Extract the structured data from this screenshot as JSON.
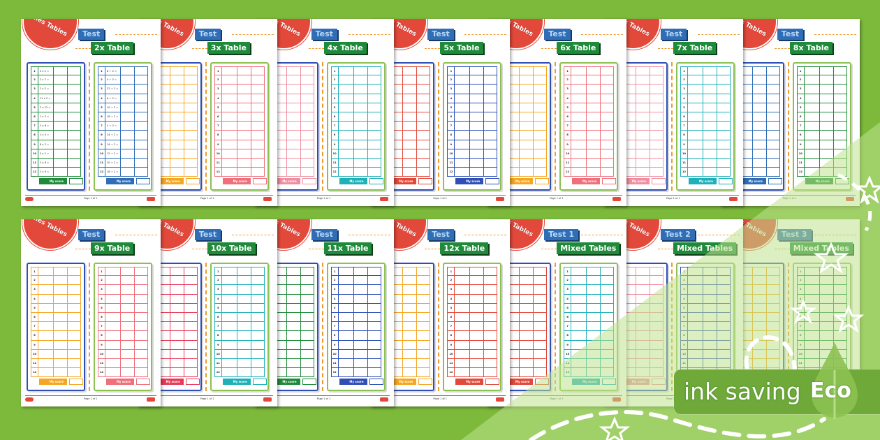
{
  "colors": {
    "background": "#7dba3c",
    "eco_badge": "#6ea93a",
    "circle": "#e2493a",
    "test_label": "#2f6db6",
    "title_label": "#1e8a3a",
    "dashes": "#f29a2e"
  },
  "common": {
    "circle_text": "Times Tables",
    "score_label": "My score",
    "page_label": "Page 1 of 1",
    "row_numbers": [
      "1",
      "2",
      "3",
      "4",
      "5",
      "6",
      "7",
      "8",
      "9",
      "10",
      "11",
      "12"
    ]
  },
  "sheets": [
    {
      "test": "Test",
      "title": "2x Table",
      "left_color": "#1e8a3a",
      "right_color": "#2f6db6",
      "left_questions": [
        "5 x 2 =",
        "2 x 7 =",
        "2 x 2 =",
        "11 x 2 =",
        "2 x 12 =",
        "1 x 2 =",
        "2 x 6 =",
        "2 x 0 =",
        "8 x 2 =",
        "3 x 2 =",
        "2 x 8 =",
        "2 x 9 ="
      ],
      "right_questions": [
        "8 ÷ 2 =",
        "4 ÷ 2 =",
        "22 ÷ 2 =",
        "6 ÷ 2 =",
        "10 ÷ 2 =",
        "18 ÷ 2 =",
        "2 ÷ 2 =",
        "24 ÷ 2 =",
        "14 ÷ 2 =",
        "12 ÷ 2 =",
        "20 ÷ 2 =",
        "18 ÷ 2 ="
      ]
    },
    {
      "test": "Test",
      "title": "3x Table",
      "left_color": "#f5a623",
      "right_color": "#ef6f7a"
    },
    {
      "test": "Test",
      "title": "4x Table",
      "left_color": "#f08fa0",
      "right_color": "#1fb0b8"
    },
    {
      "test": "Test",
      "title": "5x Table",
      "left_color": "#e2493a",
      "right_color": "#2f4fb6"
    },
    {
      "test": "Test",
      "title": "6x Table",
      "left_color": "#f5a623",
      "right_color": "#ef6f7a"
    },
    {
      "test": "Test",
      "title": "7x Table",
      "left_color": "#f08fa0",
      "right_color": "#1fb0b8"
    },
    {
      "test": "Test",
      "title": "8x Table",
      "left_color": "#2f6db6",
      "right_color": "#1e8a3a"
    },
    {
      "test": "Test",
      "title": "9x Table",
      "left_color": "#f5a623",
      "right_color": "#ef6f7a"
    },
    {
      "test": "Test",
      "title": "10x Table",
      "left_color": "#e83a5a",
      "right_color": "#1fb0b8"
    },
    {
      "test": "Test",
      "title": "11x Table",
      "left_color": "#1e8a3a",
      "right_color": "#2f4fb6"
    },
    {
      "test": "Test",
      "title": "12x Table",
      "left_color": "#f5a623",
      "right_color": "#e2493a"
    },
    {
      "test": "Test 1",
      "title": "Mixed Tables",
      "left_color": "#e2493a",
      "right_color": "#1fb0b8"
    },
    {
      "test": "Test 2",
      "title": "Mixed Tables",
      "left_color": "#f08fa0",
      "right_color": "#2f4fb6"
    },
    {
      "test": "Test 3",
      "title": "Mixed Tables",
      "left_color": "#f5a623",
      "right_color": "#1e8a3a"
    }
  ],
  "eco_badge": {
    "text": "ink saving",
    "eco": "Eco",
    "icon": "ink-drop-icon"
  }
}
